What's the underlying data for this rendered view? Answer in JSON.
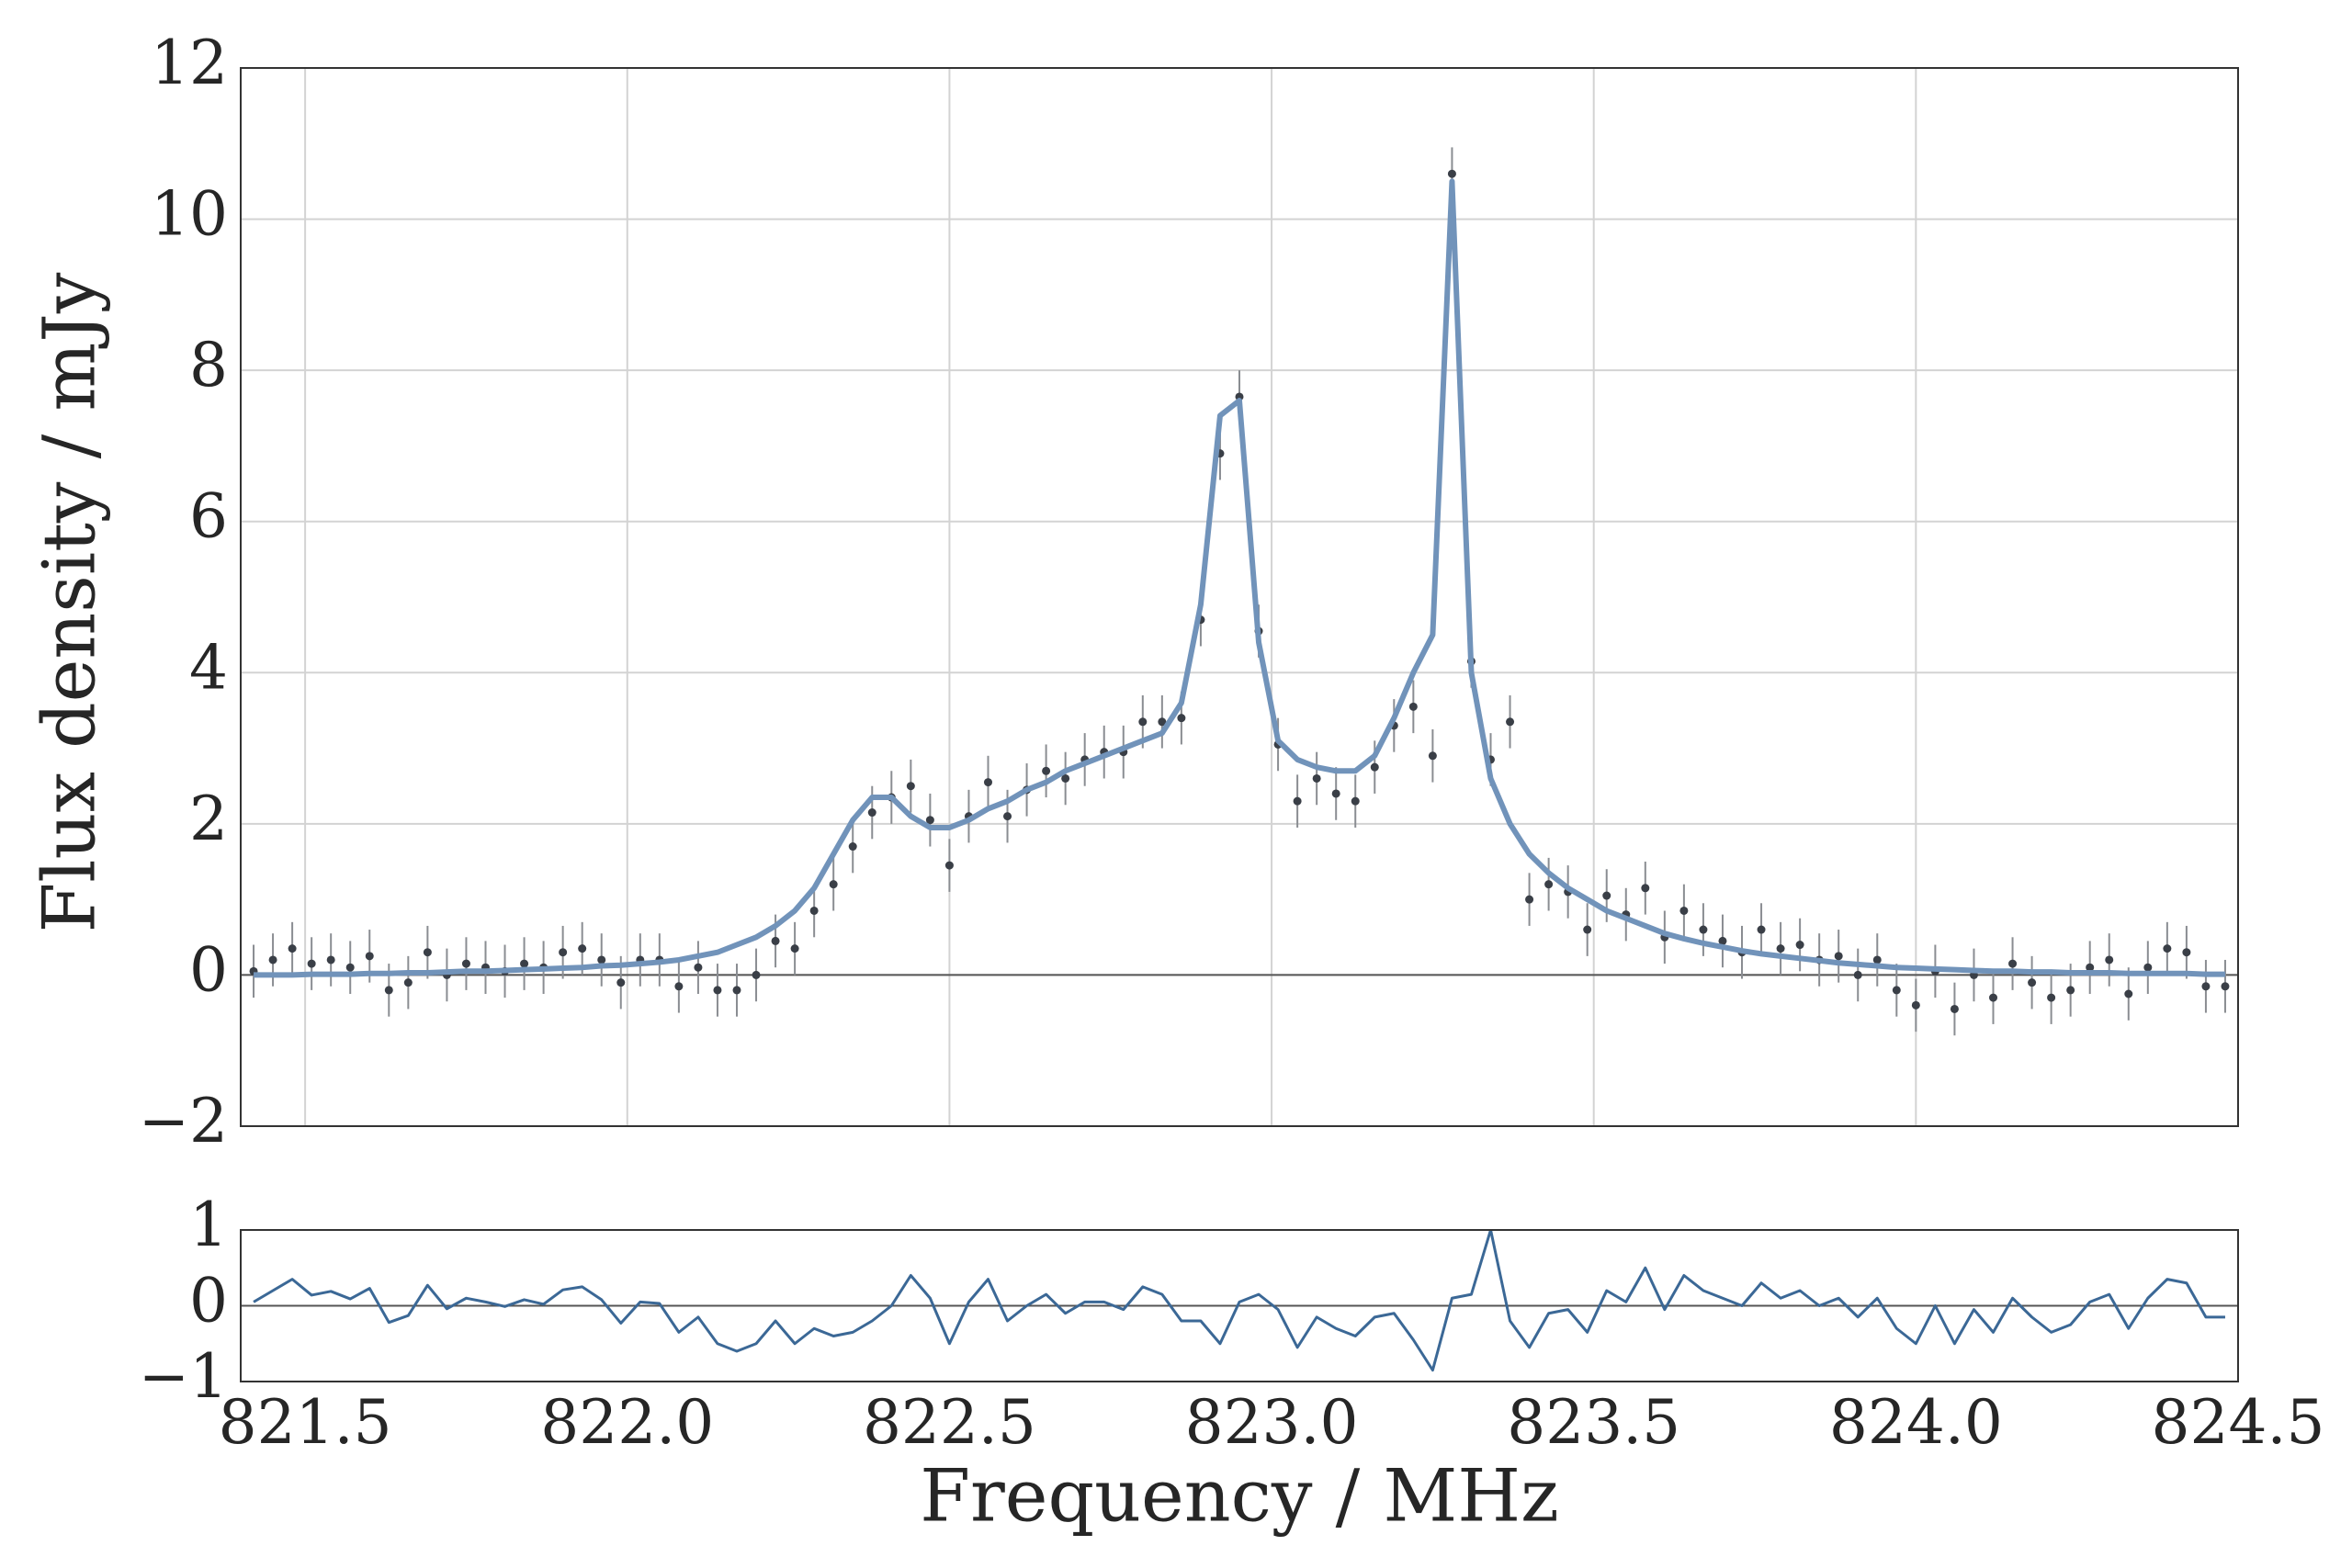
{
  "chart_data": [
    {
      "type": "errorbar",
      "ylabel": "Flux density / mJy",
      "x": [
        821.42,
        821.45,
        821.48,
        821.51,
        821.54,
        821.57,
        821.6,
        821.63,
        821.66,
        821.69,
        821.72,
        821.75,
        821.78,
        821.81,
        821.84,
        821.87,
        821.9,
        821.93,
        821.96,
        821.99,
        822.02,
        822.05,
        822.08,
        822.11,
        822.14,
        822.17,
        822.2,
        822.23,
        822.26,
        822.29,
        822.32,
        822.35,
        822.38,
        822.41,
        822.44,
        822.47,
        822.5,
        822.53,
        822.56,
        822.59,
        822.62,
        822.65,
        822.68,
        822.71,
        822.74,
        822.77,
        822.8,
        822.83,
        822.86,
        822.89,
        822.92,
        822.95,
        822.98,
        823.01,
        823.04,
        823.07,
        823.1,
        823.13,
        823.16,
        823.19,
        823.22,
        823.25,
        823.28,
        823.31,
        823.34,
        823.37,
        823.4,
        823.43,
        823.46,
        823.49,
        823.52,
        823.55,
        823.58,
        823.61,
        823.64,
        823.67,
        823.7,
        823.73,
        823.76,
        823.79,
        823.82,
        823.85,
        823.88,
        823.91,
        823.94,
        823.97,
        824.0,
        824.03,
        824.06,
        824.09,
        824.12,
        824.15,
        824.18,
        824.21,
        824.24,
        824.27,
        824.3,
        824.33,
        824.36,
        824.39,
        824.42,
        824.45,
        824.48
      ],
      "series": [
        {
          "type": "errorbar",
          "color": "#3a3f47",
          "error": 0.35,
          "values": [
            0.05,
            0.2,
            0.35,
            0.15,
            0.2,
            0.1,
            0.25,
            -0.2,
            -0.1,
            0.3,
            0.0,
            0.15,
            0.1,
            0.05,
            0.15,
            0.1,
            0.3,
            0.35,
            0.2,
            -0.1,
            0.2,
            0.2,
            -0.15,
            0.1,
            -0.2,
            -0.2,
            0.0,
            0.45,
            0.35,
            0.85,
            1.2,
            1.7,
            2.15,
            2.35,
            2.5,
            2.05,
            1.45,
            2.1,
            2.55,
            2.1,
            2.45,
            2.7,
            2.6,
            2.85,
            2.95,
            2.95,
            3.35,
            3.35,
            3.4,
            4.7,
            6.9,
            7.65,
            4.55,
            3.05,
            2.3,
            2.6,
            2.4,
            2.3,
            2.75,
            3.3,
            3.55,
            2.9,
            10.6,
            4.15,
            2.85,
            3.35,
            1.0,
            1.2,
            1.1,
            0.6,
            1.05,
            0.8,
            1.15,
            0.5,
            0.85,
            0.6,
            0.45,
            0.3,
            0.6,
            0.35,
            0.4,
            0.2,
            0.25,
            0.0,
            0.2,
            -0.2,
            -0.4,
            0.05,
            -0.45,
            0.0,
            -0.3,
            0.15,
            -0.1,
            -0.3,
            -0.2,
            0.1,
            0.2,
            -0.25,
            0.1,
            0.35,
            0.3,
            -0.15,
            -0.15
          ]
        },
        {
          "type": "line",
          "color": "#7193ba",
          "values": [
            0.0,
            0.0,
            0.0,
            0.01,
            0.01,
            0.01,
            0.02,
            0.02,
            0.03,
            0.03,
            0.04,
            0.05,
            0.05,
            0.06,
            0.07,
            0.08,
            0.09,
            0.1,
            0.12,
            0.13,
            0.15,
            0.17,
            0.2,
            0.25,
            0.3,
            0.4,
            0.5,
            0.65,
            0.85,
            1.15,
            1.6,
            2.05,
            2.35,
            2.35,
            2.1,
            1.95,
            1.95,
            2.05,
            2.2,
            2.3,
            2.45,
            2.55,
            2.7,
            2.8,
            2.9,
            3.0,
            3.1,
            3.2,
            3.6,
            4.9,
            7.4,
            7.6,
            4.4,
            3.1,
            2.85,
            2.75,
            2.7,
            2.7,
            2.9,
            3.4,
            4.0,
            4.5,
            10.5,
            4.0,
            2.6,
            2.0,
            1.6,
            1.35,
            1.15,
            1.0,
            0.85,
            0.75,
            0.65,
            0.55,
            0.48,
            0.42,
            0.37,
            0.32,
            0.28,
            0.25,
            0.22,
            0.19,
            0.16,
            0.14,
            0.12,
            0.1,
            0.09,
            0.08,
            0.07,
            0.06,
            0.05,
            0.05,
            0.04,
            0.04,
            0.03,
            0.03,
            0.03,
            0.02,
            0.02,
            0.02,
            0.02,
            0.01,
            0.01
          ]
        }
      ],
      "hline": 0,
      "xlim": [
        821.4,
        824.5
      ],
      "xticks": [
        821.5,
        822,
        822.5,
        823,
        823.5,
        824,
        824.5
      ],
      "ylim": [
        -2,
        12
      ],
      "yticks": [
        {
          "value": -2,
          "label": "−2"
        },
        0,
        2,
        4,
        6,
        8,
        10,
        12
      ],
      "grid": true
    },
    {
      "type": "line",
      "xlabel": "Frequency / MHz",
      "x": [
        821.42,
        821.45,
        821.48,
        821.51,
        821.54,
        821.57,
        821.6,
        821.63,
        821.66,
        821.69,
        821.72,
        821.75,
        821.78,
        821.81,
        821.84,
        821.87,
        821.9,
        821.93,
        821.96,
        821.99,
        822.02,
        822.05,
        822.08,
        822.11,
        822.14,
        822.17,
        822.2,
        822.23,
        822.26,
        822.29,
        822.32,
        822.35,
        822.38,
        822.41,
        822.44,
        822.47,
        822.5,
        822.53,
        822.56,
        822.59,
        822.62,
        822.65,
        822.68,
        822.71,
        822.74,
        822.77,
        822.8,
        822.83,
        822.86,
        822.89,
        822.92,
        822.95,
        822.98,
        823.01,
        823.04,
        823.07,
        823.1,
        823.13,
        823.16,
        823.19,
        823.22,
        823.25,
        823.28,
        823.31,
        823.34,
        823.37,
        823.4,
        823.43,
        823.46,
        823.49,
        823.52,
        823.55,
        823.58,
        823.61,
        823.64,
        823.67,
        823.7,
        823.73,
        823.76,
        823.79,
        823.82,
        823.85,
        823.88,
        823.91,
        823.94,
        823.97,
        824.0,
        824.03,
        824.06,
        824.09,
        824.12,
        824.15,
        824.18,
        824.21,
        824.24,
        824.27,
        824.3,
        824.33,
        824.36,
        824.39,
        824.42,
        824.45,
        824.48
      ],
      "series": [
        {
          "type": "line",
          "color": "#3b6896",
          "values": [
            0.05,
            0.2,
            0.35,
            0.14,
            0.19,
            0.09,
            0.23,
            -0.22,
            -0.13,
            0.27,
            -0.04,
            0.1,
            0.05,
            -0.01,
            0.08,
            0.02,
            0.21,
            0.25,
            0.08,
            -0.23,
            0.05,
            0.03,
            -0.35,
            -0.15,
            -0.5,
            -0.6,
            -0.5,
            -0.2,
            -0.5,
            -0.3,
            -0.4,
            -0.35,
            -0.2,
            0.0,
            0.4,
            0.1,
            -0.5,
            0.05,
            0.35,
            -0.2,
            0.0,
            0.15,
            -0.1,
            0.05,
            0.05,
            -0.05,
            0.25,
            0.15,
            -0.2,
            -0.2,
            -0.5,
            0.05,
            0.15,
            -0.05,
            -0.55,
            -0.15,
            -0.3,
            -0.4,
            -0.15,
            -0.1,
            -0.45,
            -0.85,
            0.1,
            0.15,
            1.0,
            -0.2,
            -0.55,
            -0.1,
            -0.05,
            -0.35,
            0.2,
            0.05,
            0.5,
            -0.05,
            0.4,
            0.2,
            0.1,
            0.0,
            0.3,
            0.1,
            0.2,
            0.0,
            0.1,
            -0.15,
            0.1,
            -0.3,
            -0.5,
            0.0,
            -0.5,
            -0.05,
            -0.35,
            0.1,
            -0.15,
            -0.35,
            -0.25,
            0.05,
            0.15,
            -0.3,
            0.1,
            0.35,
            0.3,
            -0.15,
            -0.15
          ]
        }
      ],
      "hline": 0,
      "xlim": [
        821.4,
        824.5
      ],
      "xticks": [
        821.5,
        {
          "value": 822,
          "label": "822.0"
        },
        822.5,
        {
          "value": 823,
          "label": "823.0"
        },
        823.5,
        {
          "value": 824,
          "label": "824.0"
        },
        824.5
      ],
      "ylim": [
        -1,
        1
      ],
      "yticks": [
        {
          "value": -1,
          "label": "−1"
        },
        0,
        1
      ],
      "grid": false
    }
  ]
}
